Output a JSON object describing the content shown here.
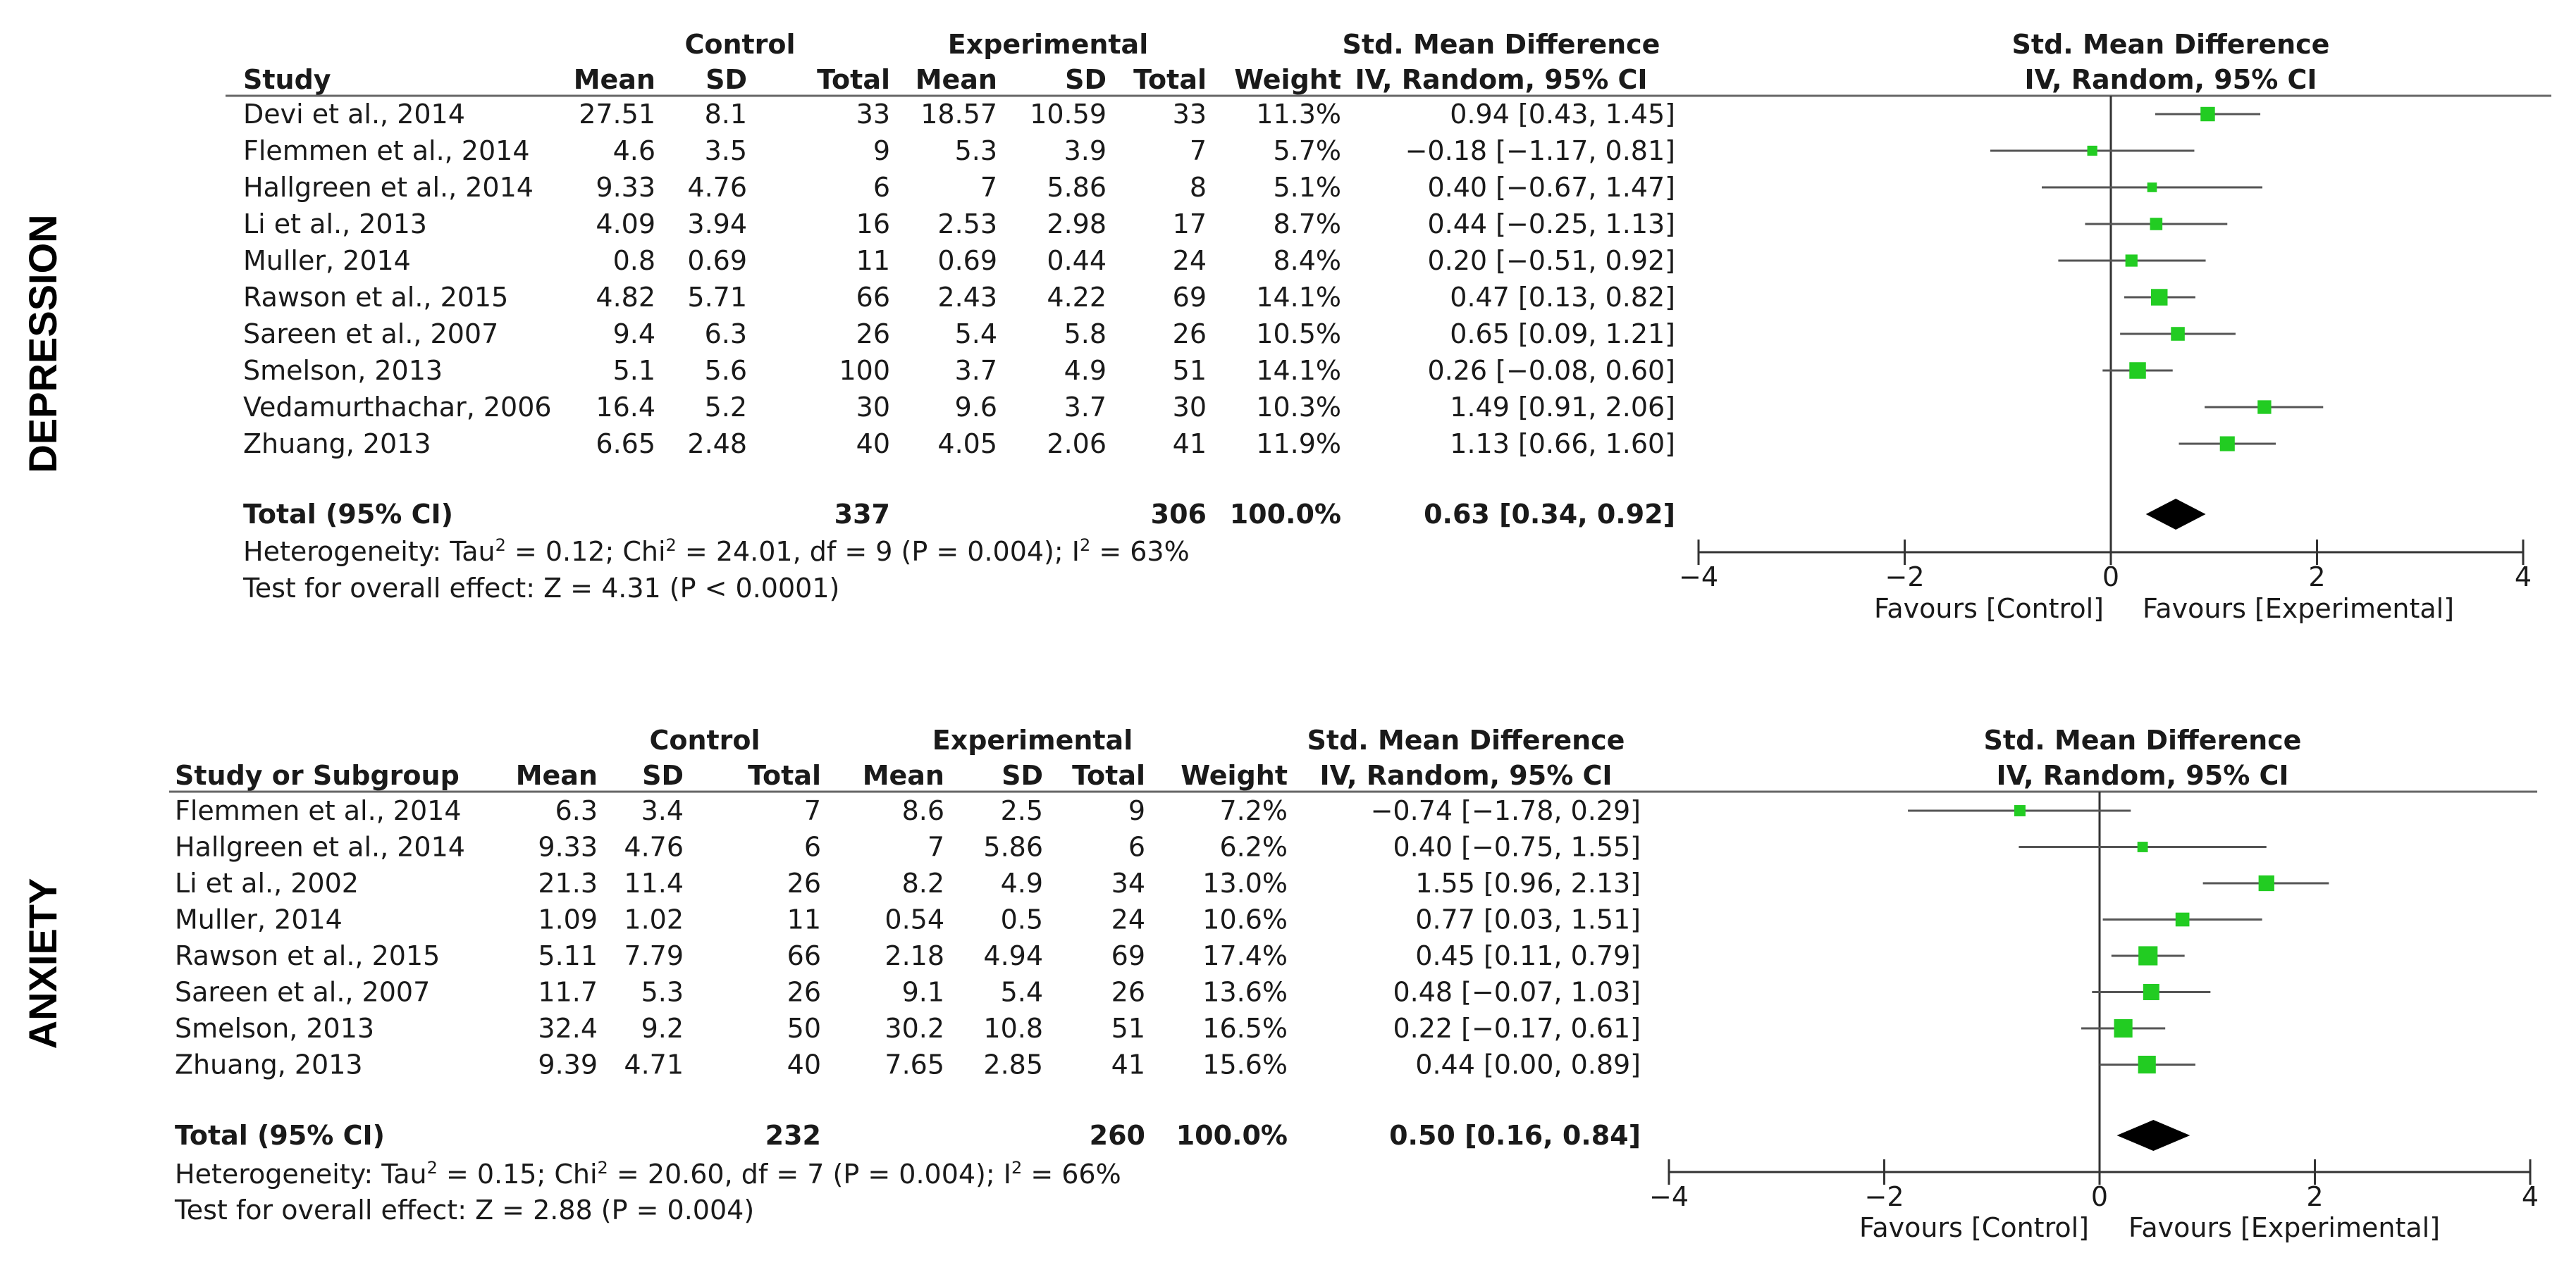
{
  "panels": [
    {
      "side_label": "DEPRESSION",
      "header": {
        "control": "Control",
        "experimental": "Experimental",
        "smd_top": "Std. Mean Difference",
        "smd_sub": "IV, Random, 95% CI",
        "plot_top": "Std. Mean Difference",
        "plot_sub": "IV, Random, 95% CI",
        "study": "Study",
        "mean1": "Mean",
        "sd1": "SD",
        "total1": "Total",
        "mean2": "Mean",
        "sd2": "SD",
        "total2": "Total",
        "weight": "Weight"
      },
      "rows": [
        {
          "study": "Devi et al., 2014",
          "mean1": "27.51",
          "sd1": "8.1",
          "total1": "33",
          "mean2": "18.57",
          "sd2": "10.59",
          "total2": "33",
          "weight": "11.3%",
          "ci": "0.94 [0.43, 1.45]"
        },
        {
          "study": "Flemmen et al., 2014",
          "mean1": "4.6",
          "sd1": "3.5",
          "total1": "9",
          "mean2": "5.3",
          "sd2": "3.9",
          "total2": "7",
          "weight": "5.7%",
          "ci": "−0.18 [−1.17, 0.81]"
        },
        {
          "study": "Hallgreen et al., 2014",
          "mean1": "9.33",
          "sd1": "4.76",
          "total1": "6",
          "mean2": "7",
          "sd2": "5.86",
          "total2": "8",
          "weight": "5.1%",
          "ci": "0.40 [−0.67, 1.47]"
        },
        {
          "study": "Li et al., 2013",
          "mean1": "4.09",
          "sd1": "3.94",
          "total1": "16",
          "mean2": "2.53",
          "sd2": "2.98",
          "total2": "17",
          "weight": "8.7%",
          "ci": "0.44 [−0.25, 1.13]"
        },
        {
          "study": "Muller, 2014",
          "mean1": "0.8",
          "sd1": "0.69",
          "total1": "11",
          "mean2": "0.69",
          "sd2": "0.44",
          "total2": "24",
          "weight": "8.4%",
          "ci": "0.20 [−0.51, 0.92]"
        },
        {
          "study": "Rawson et al., 2015",
          "mean1": "4.82",
          "sd1": "5.71",
          "total1": "66",
          "mean2": "2.43",
          "sd2": "4.22",
          "total2": "69",
          "weight": "14.1%",
          "ci": "0.47 [0.13, 0.82]"
        },
        {
          "study": "Sareen et al., 2007",
          "mean1": "9.4",
          "sd1": "6.3",
          "total1": "26",
          "mean2": "5.4",
          "sd2": "5.8",
          "total2": "26",
          "weight": "10.5%",
          "ci": "0.65 [0.09, 1.21]"
        },
        {
          "study": "Smelson, 2013",
          "mean1": "5.1",
          "sd1": "5.6",
          "total1": "100",
          "mean2": "3.7",
          "sd2": "4.9",
          "total2": "51",
          "weight": "14.1%",
          "ci": "0.26 [−0.08, 0.60]"
        },
        {
          "study": "Vedamurthachar, 2006",
          "mean1": "16.4",
          "sd1": "5.2",
          "total1": "30",
          "mean2": "9.6",
          "sd2": "3.7",
          "total2": "30",
          "weight": "10.3%",
          "ci": "1.49 [0.91, 2.06]"
        },
        {
          "study": "Zhuang, 2013",
          "mean1": "6.65",
          "sd1": "2.48",
          "total1": "40",
          "mean2": "4.05",
          "sd2": "2.06",
          "total2": "41",
          "weight": "11.9%",
          "ci": "1.13 [0.66, 1.60]"
        }
      ],
      "total": {
        "label": "Total (95% CI)",
        "total1": "337",
        "total2": "306",
        "weight": "100.0%",
        "ci": "0.63 [0.34, 0.92]"
      },
      "heterogeneity_a": "Heterogeneity: Tau",
      "heterogeneity_b": " = 0.12; Chi",
      "heterogeneity_c": " = 24.01, df = 9 (P = 0.004); I",
      "heterogeneity_d": " = 63%",
      "overall_effect": "Test for overall effect: Z = 4.31 (P < 0.0001)",
      "favours_left": "Favours [Control]",
      "favours_right": "Favours [Experimental]"
    },
    {
      "side_label": "ANXIETY",
      "header": {
        "control": "Control",
        "experimental": "Experimental",
        "smd_top": "Std. Mean Difference",
        "smd_sub": "IV, Random, 95% CI",
        "plot_top": "Std. Mean Difference",
        "plot_sub": "IV, Random, 95% CI",
        "study": "Study or Subgroup",
        "mean1": "Mean",
        "sd1": "SD",
        "total1": "Total",
        "mean2": "Mean",
        "sd2": "SD",
        "total2": "Total",
        "weight": "Weight"
      },
      "rows": [
        {
          "study": "Flemmen et al., 2014",
          "mean1": "6.3",
          "sd1": "3.4",
          "total1": "7",
          "mean2": "8.6",
          "sd2": "2.5",
          "total2": "9",
          "weight": "7.2%",
          "ci": "−0.74 [−1.78, 0.29]"
        },
        {
          "study": "Hallgreen et al., 2014",
          "mean1": "9.33",
          "sd1": "4.76",
          "total1": "6",
          "mean2": "7",
          "sd2": "5.86",
          "total2": "6",
          "weight": "6.2%",
          "ci": "0.40 [−0.75, 1.55]"
        },
        {
          "study": "Li et al., 2002",
          "mean1": "21.3",
          "sd1": "11.4",
          "total1": "26",
          "mean2": "8.2",
          "sd2": "4.9",
          "total2": "34",
          "weight": "13.0%",
          "ci": "1.55 [0.96, 2.13]"
        },
        {
          "study": "Muller, 2014",
          "mean1": "1.09",
          "sd1": "1.02",
          "total1": "11",
          "mean2": "0.54",
          "sd2": "0.5",
          "total2": "24",
          "weight": "10.6%",
          "ci": "0.77 [0.03, 1.51]"
        },
        {
          "study": "Rawson et al., 2015",
          "mean1": "5.11",
          "sd1": "7.79",
          "total1": "66",
          "mean2": "2.18",
          "sd2": "4.94",
          "total2": "69",
          "weight": "17.4%",
          "ci": "0.45 [0.11, 0.79]"
        },
        {
          "study": "Sareen et al., 2007",
          "mean1": "11.7",
          "sd1": "5.3",
          "total1": "26",
          "mean2": "9.1",
          "sd2": "5.4",
          "total2": "26",
          "weight": "13.6%",
          "ci": "0.48 [−0.07, 1.03]"
        },
        {
          "study": "Smelson, 2013",
          "mean1": "32.4",
          "sd1": "9.2",
          "total1": "50",
          "mean2": "30.2",
          "sd2": "10.8",
          "total2": "51",
          "weight": "16.5%",
          "ci": "0.22 [−0.17, 0.61]"
        },
        {
          "study": "Zhuang, 2013",
          "mean1": "9.39",
          "sd1": "4.71",
          "total1": "40",
          "mean2": "7.65",
          "sd2": "2.85",
          "total2": "41",
          "weight": "15.6%",
          "ci": "0.44 [0.00, 0.89]"
        }
      ],
      "total": {
        "label": "Total (95% CI)",
        "total1": "232",
        "total2": "260",
        "weight": "100.0%",
        "ci": "0.50 [0.16, 0.84]"
      },
      "heterogeneity_a": "Heterogeneity: Tau",
      "heterogeneity_b": " = 0.15; Chi",
      "heterogeneity_c": " = 20.60, df = 7 (P = 0.004); I",
      "heterogeneity_d": " = 66%",
      "overall_effect": "Test for overall effect: Z = 2.88 (P = 0.004)",
      "favours_left": "Favours [Control]",
      "favours_right": "Favours [Experimental]"
    }
  ],
  "superscript": "2",
  "colors": {
    "marker": "#22cc22",
    "diamond": "#000000",
    "axis": "#333333",
    "text": "#1a1a1a"
  },
  "chart_data": [
    {
      "type": "forest",
      "title": "DEPRESSION",
      "xlim": [
        -4,
        4
      ],
      "xticks": [
        -4,
        -2,
        0,
        2,
        4
      ],
      "xtick_labels": [
        "−4",
        "−2",
        "0",
        "2",
        "4"
      ],
      "studies": [
        {
          "name": "Devi et al., 2014",
          "est": 0.94,
          "lo": 0.43,
          "hi": 1.45,
          "weight": 11.3
        },
        {
          "name": "Flemmen et al., 2014",
          "est": -0.18,
          "lo": -1.17,
          "hi": 0.81,
          "weight": 5.7
        },
        {
          "name": "Hallgreen et al., 2014",
          "est": 0.4,
          "lo": -0.67,
          "hi": 1.47,
          "weight": 5.1
        },
        {
          "name": "Li et al., 2013",
          "est": 0.44,
          "lo": -0.25,
          "hi": 1.13,
          "weight": 8.7
        },
        {
          "name": "Muller, 2014",
          "est": 0.2,
          "lo": -0.51,
          "hi": 0.92,
          "weight": 8.4
        },
        {
          "name": "Rawson et al., 2015",
          "est": 0.47,
          "lo": 0.13,
          "hi": 0.82,
          "weight": 14.1
        },
        {
          "name": "Sareen et al., 2007",
          "est": 0.65,
          "lo": 0.09,
          "hi": 1.21,
          "weight": 10.5
        },
        {
          "name": "Smelson, 2013",
          "est": 0.26,
          "lo": -0.08,
          "hi": 0.6,
          "weight": 14.1
        },
        {
          "name": "Vedamurthachar, 2006",
          "est": 1.49,
          "lo": 0.91,
          "hi": 2.06,
          "weight": 10.3
        },
        {
          "name": "Zhuang, 2013",
          "est": 1.13,
          "lo": 0.66,
          "hi": 1.6,
          "weight": 11.9
        }
      ],
      "pooled": {
        "est": 0.63,
        "lo": 0.34,
        "hi": 0.92
      }
    },
    {
      "type": "forest",
      "title": "ANXIETY",
      "xlim": [
        -4,
        4
      ],
      "xticks": [
        -4,
        -2,
        0,
        2,
        4
      ],
      "xtick_labels": [
        "−4",
        "−2",
        "0",
        "2",
        "4"
      ],
      "studies": [
        {
          "name": "Flemmen et al., 2014",
          "est": -0.74,
          "lo": -1.78,
          "hi": 0.29,
          "weight": 7.2
        },
        {
          "name": "Hallgreen et al., 2014",
          "est": 0.4,
          "lo": -0.75,
          "hi": 1.55,
          "weight": 6.2
        },
        {
          "name": "Li et al., 2002",
          "est": 1.55,
          "lo": 0.96,
          "hi": 2.13,
          "weight": 13.0
        },
        {
          "name": "Muller, 2014",
          "est": 0.77,
          "lo": 0.03,
          "hi": 1.51,
          "weight": 10.6
        },
        {
          "name": "Rawson et al., 2015",
          "est": 0.45,
          "lo": 0.11,
          "hi": 0.79,
          "weight": 17.4
        },
        {
          "name": "Sareen et al., 2007",
          "est": 0.48,
          "lo": -0.07,
          "hi": 1.03,
          "weight": 13.6
        },
        {
          "name": "Smelson, 2013",
          "est": 0.22,
          "lo": -0.17,
          "hi": 0.61,
          "weight": 16.5
        },
        {
          "name": "Zhuang, 2013",
          "est": 0.44,
          "lo": 0.0,
          "hi": 0.89,
          "weight": 15.6
        }
      ],
      "pooled": {
        "est": 0.5,
        "lo": 0.16,
        "hi": 0.84
      }
    }
  ]
}
